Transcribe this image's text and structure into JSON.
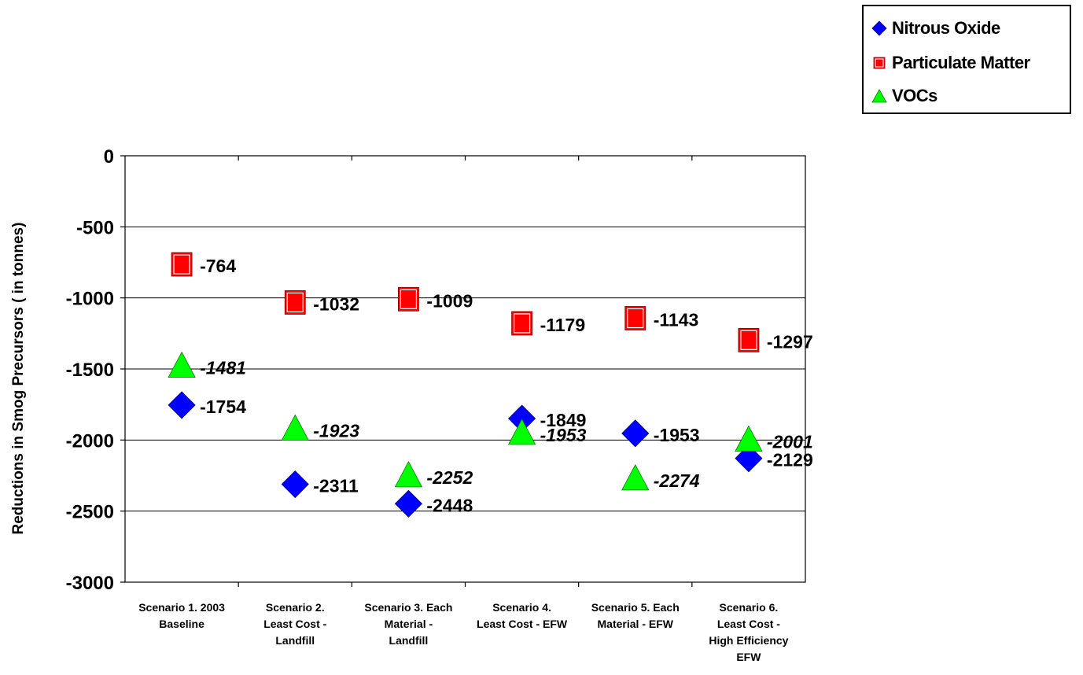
{
  "chart_data": {
    "type": "scatter",
    "ylabel": "Reductions in Smog Precursors ( in tonnes)",
    "xlabel": "",
    "ylim": [
      -3000,
      0
    ],
    "yticks": [
      0,
      -500,
      -1000,
      -1500,
      -2000,
      -2500,
      -3000
    ],
    "ytick_labels": [
      "0",
      "-500",
      "-1000",
      "-1500",
      "-2000",
      "-2500",
      "-3000"
    ],
    "grid": "horizontal",
    "legend_position": "top-right",
    "categories": [
      [
        "Scenario 1. 2003",
        "Baseline"
      ],
      [
        "Scenario 2.",
        "Least Cost -",
        "Landfill"
      ],
      [
        "Scenario 3. Each",
        "Material -",
        "Landfill"
      ],
      [
        "Scenario 4.",
        "Least Cost - EFW"
      ],
      [
        "Scenario 5. Each",
        "Material - EFW"
      ],
      [
        "Scenario 6.",
        "Least Cost -",
        "High Efficiency",
        "EFW"
      ]
    ],
    "series": [
      {
        "name": "Nitrous Oxide",
        "marker": "diamond",
        "color": "#0000ff",
        "label_style": "normal",
        "values": [
          -1754,
          -2311,
          -2448,
          -1849,
          -1953,
          -2129
        ],
        "labels": [
          "-1754",
          "-2311",
          "-2448",
          "-1849",
          "-1953",
          "-2129"
        ]
      },
      {
        "name": "Particulate Matter",
        "marker": "square",
        "color": "#ff0000",
        "label_style": "normal",
        "values": [
          -764,
          -1032,
          -1009,
          -1179,
          -1143,
          -1297
        ],
        "labels": [
          "-764",
          "-1032",
          "-1009",
          "-1179",
          "-1143",
          "-1297"
        ]
      },
      {
        "name": "VOCs",
        "marker": "triangle",
        "color": "#00ff00",
        "label_style": "italic",
        "values": [
          -1481,
          -1923,
          -2252,
          -1953,
          -2274,
          -2001
        ],
        "labels": [
          "-1481",
          "-1923",
          "-2252",
          "-1953",
          "-2274",
          "-2001"
        ]
      }
    ]
  }
}
